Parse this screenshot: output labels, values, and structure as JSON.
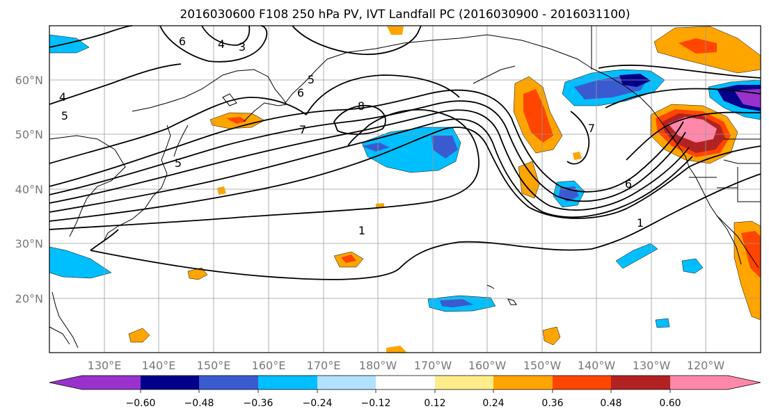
{
  "title": "2016030600 F108 250 hPa PV, IVT Landfall PC (2016030900 - 2016031100)",
  "lat_labels": [
    "60°N",
    "50°N",
    "40°N",
    "30°N",
    "20°N"
  ],
  "lon_labels": [
    "130°E",
    "140°E",
    "150°E",
    "160°E",
    "170°E",
    "180°W",
    "170°W",
    "160°W",
    "150°W",
    "140°W",
    "130°W",
    "120°W"
  ],
  "contour_labels": [
    "6",
    "4",
    "3",
    "5",
    "6",
    "8",
    "7",
    "5",
    "7",
    "6",
    "1",
    "1",
    "4",
    "5"
  ],
  "colorbar": {
    "colors": [
      "#9932cc",
      "#00008b",
      "#3a5bcf",
      "#00bfff",
      "#b0e2ff",
      "#ffffff",
      "#ffec8b",
      "#ffa500",
      "#ff4500",
      "#b22222",
      "#ff88aa"
    ],
    "tick_labels": [
      "−0.60",
      "−0.48",
      "−0.36",
      "−0.24",
      "−0.12",
      "0.12",
      "0.24",
      "0.36",
      "0.48",
      "0.60"
    ]
  }
}
